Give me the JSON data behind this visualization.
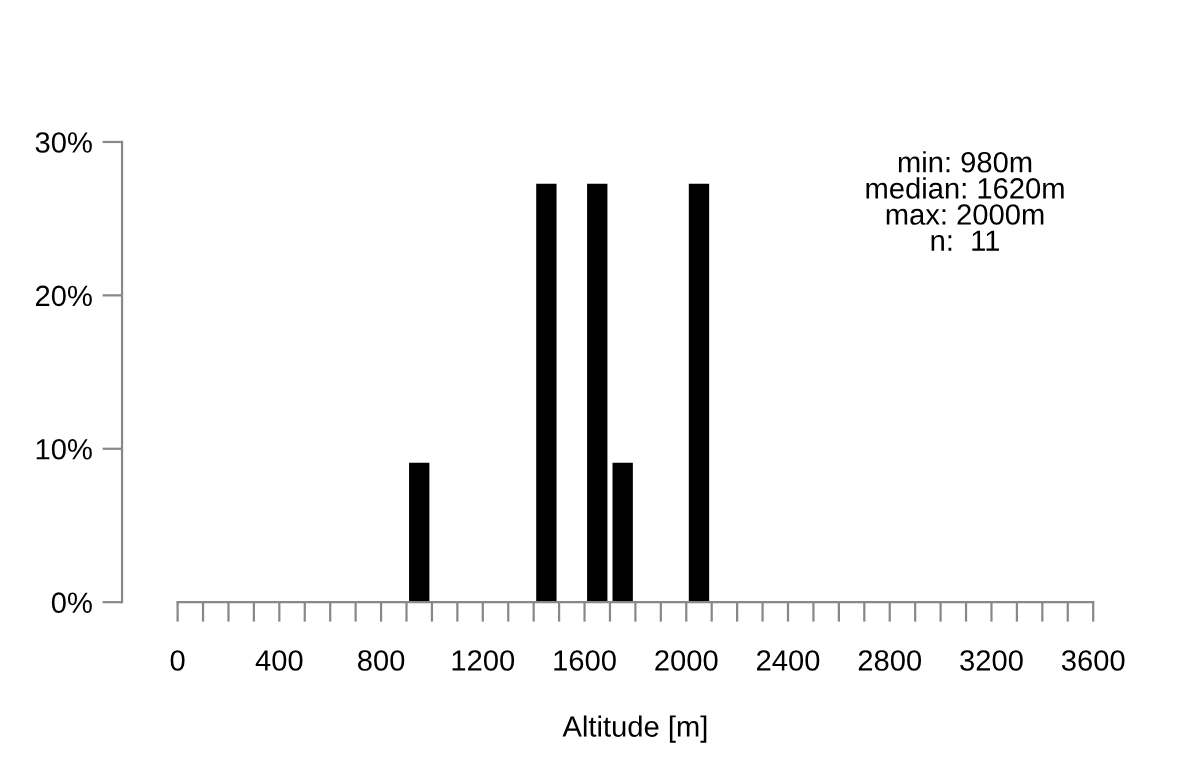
{
  "chart_data": {
    "type": "histogram",
    "xlabel": "Altitude [m]",
    "bins": [
      900,
      1000,
      1100,
      1200,
      1300,
      1400,
      1500,
      1600,
      1700,
      1800,
      1900,
      2000,
      2100
    ],
    "values": [
      9.09,
      0,
      0,
      0,
      0,
      27.27,
      0,
      27.27,
      9.09,
      0,
      0,
      27.27
    ],
    "color": "#000000",
    "xlim": [
      0,
      3600
    ],
    "xticks": [
      0,
      {
        "value": 100,
        "label": null
      },
      {
        "value": 200,
        "label": null
      },
      {
        "value": 300,
        "label": null
      },
      400,
      {
        "value": 500,
        "label": null
      },
      {
        "value": 600,
        "label": null
      },
      {
        "value": 700,
        "label": null
      },
      800,
      {
        "value": 900,
        "label": null
      },
      {
        "value": 1000,
        "label": null
      },
      {
        "value": 1100,
        "label": null
      },
      1200,
      {
        "value": 1300,
        "label": null
      },
      {
        "value": 1400,
        "label": null
      },
      {
        "value": 1500,
        "label": null
      },
      1600,
      {
        "value": 1700,
        "label": null
      },
      {
        "value": 1800,
        "label": null
      },
      {
        "value": 1900,
        "label": null
      },
      2000,
      {
        "value": 2100,
        "label": null
      },
      {
        "value": 2200,
        "label": null
      },
      {
        "value": 2300,
        "label": null
      },
      2400,
      {
        "value": 2500,
        "label": null
      },
      {
        "value": 2600,
        "label": null
      },
      {
        "value": 2700,
        "label": null
      },
      2800,
      {
        "value": 2900,
        "label": null
      },
      {
        "value": 3000,
        "label": null
      },
      {
        "value": 3100,
        "label": null
      },
      3200,
      {
        "value": 3300,
        "label": null
      },
      {
        "value": 3400,
        "label": null
      },
      {
        "value": 3500,
        "label": null
      },
      3600
    ],
    "ylim": [
      0,
      30
    ],
    "yticks": [
      {
        "value": 0,
        "label": "0%"
      },
      {
        "value": 10,
        "label": "10%"
      },
      {
        "value": 20,
        "label": "20%"
      },
      {
        "value": 30,
        "label": "30%"
      }
    ],
    "grid": false,
    "annotations": [
      "min: 980m\nmedian: 1620m\nmax: 2000m\nn:  11"
    ]
  }
}
